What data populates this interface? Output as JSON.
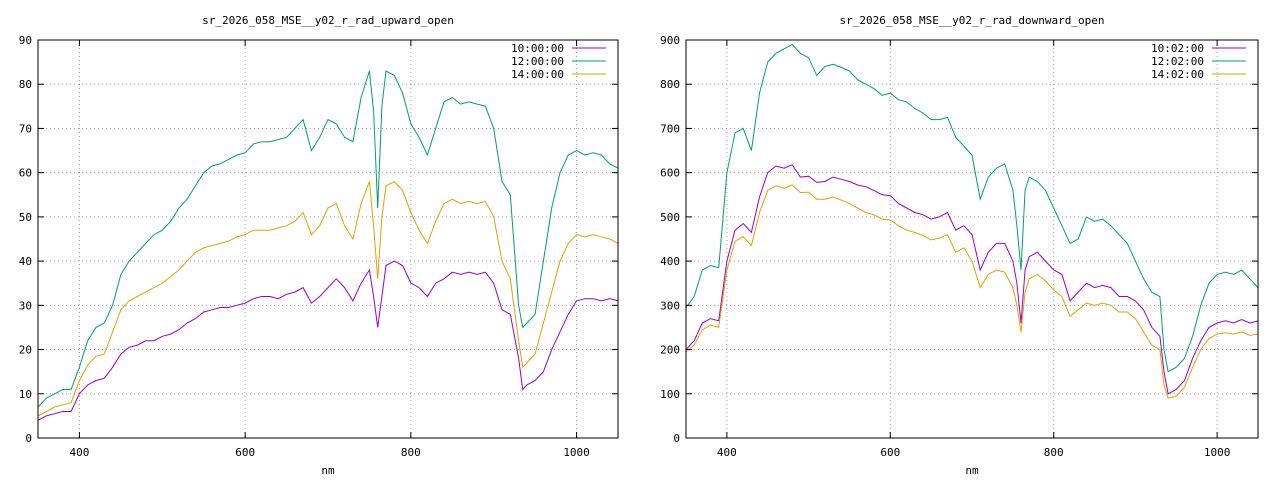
{
  "chart_data": [
    {
      "type": "line",
      "title": "sr_2026_058_MSE__y02_r_rad_upward_open",
      "xlabel": "nm",
      "ylabel": "",
      "xlim": [
        350,
        1050
      ],
      "ylim": [
        0,
        90
      ],
      "xticks": [
        400,
        600,
        800,
        1000
      ],
      "yticks": [
        0,
        10,
        20,
        30,
        40,
        50,
        60,
        70,
        80,
        90
      ],
      "grid": true,
      "legend_position": "top-right",
      "x": [
        350,
        360,
        370,
        380,
        390,
        400,
        410,
        420,
        430,
        440,
        450,
        460,
        470,
        480,
        490,
        500,
        510,
        520,
        530,
        540,
        550,
        560,
        570,
        580,
        590,
        600,
        610,
        620,
        630,
        640,
        650,
        660,
        670,
        680,
        690,
        700,
        710,
        720,
        730,
        740,
        750,
        755,
        760,
        765,
        770,
        780,
        790,
        800,
        810,
        820,
        830,
        840,
        850,
        860,
        870,
        880,
        890,
        900,
        910,
        920,
        930,
        935,
        940,
        950,
        960,
        970,
        980,
        990,
        1000,
        1010,
        1020,
        1030,
        1040,
        1050
      ],
      "series": [
        {
          "name": "10:00:00",
          "color": "#9400d3",
          "values": [
            4,
            5,
            5.5,
            6,
            6,
            10,
            12,
            13,
            13.5,
            16,
            19,
            20.5,
            21,
            22,
            22,
            23,
            23.5,
            24.5,
            26,
            27,
            28.5,
            29,
            29.5,
            29.5,
            30,
            30.5,
            31.5,
            32,
            32,
            31.5,
            32.5,
            33,
            34,
            30.5,
            32,
            34,
            36,
            34,
            31,
            35,
            38,
            32,
            25,
            32,
            39,
            40,
            39,
            35,
            34,
            32,
            35,
            36,
            37.5,
            37,
            37.5,
            37,
            37.5,
            35,
            29,
            28,
            18,
            11,
            12,
            13,
            15,
            20,
            24,
            28,
            31,
            31.5,
            31.5,
            31,
            31.5,
            31
          ]
        },
        {
          "name": "12:00:00",
          "color": "#009e73",
          "values": [
            7,
            9,
            10,
            11,
            11,
            16,
            22,
            25,
            26,
            30,
            37,
            40,
            42,
            44,
            46,
            47,
            49,
            52,
            54,
            57,
            60,
            61.5,
            62,
            63,
            64,
            64.5,
            66.5,
            67,
            67,
            67.5,
            68,
            70,
            72,
            65,
            68,
            72,
            71,
            68,
            67,
            77,
            83,
            74,
            52,
            75,
            83,
            82,
            78,
            71,
            68,
            64,
            70,
            76,
            77,
            75.5,
            76,
            75.5,
            75,
            70,
            58,
            55,
            30,
            25,
            26,
            28,
            40,
            52,
            60,
            64,
            65,
            64,
            64.5,
            64,
            62,
            61
          ]
        },
        {
          "name": "14:00:00",
          "color": "#e69f00",
          "values": [
            5,
            6,
            7,
            7.5,
            8,
            13,
            16.5,
            18.5,
            19,
            24,
            29,
            31,
            32,
            33,
            34,
            35,
            36.5,
            38,
            40,
            42,
            43,
            43.5,
            44,
            44.5,
            45.5,
            46,
            47,
            47,
            47,
            47.5,
            48,
            49,
            51,
            46,
            48,
            52,
            53,
            48,
            45,
            53,
            58,
            48,
            36,
            50,
            57,
            58,
            56,
            51,
            47,
            44,
            49,
            53,
            54,
            53,
            53.5,
            53,
            53.5,
            50,
            40,
            36,
            22,
            16,
            17,
            19,
            26,
            33,
            40,
            44,
            46,
            45.5,
            46,
            45.5,
            45,
            44
          ]
        }
      ]
    },
    {
      "type": "line",
      "title": "sr_2026_058_MSE__y02_r_rad_downward_open",
      "xlabel": "nm",
      "ylabel": "",
      "xlim": [
        350,
        1050
      ],
      "ylim": [
        0,
        900
      ],
      "xticks": [
        400,
        600,
        800,
        1000
      ],
      "yticks": [
        0,
        100,
        200,
        300,
        400,
        500,
        600,
        700,
        800,
        900
      ],
      "grid": true,
      "legend_position": "top-right",
      "x": [
        350,
        360,
        370,
        380,
        390,
        400,
        410,
        420,
        430,
        440,
        450,
        460,
        470,
        480,
        490,
        500,
        510,
        520,
        530,
        540,
        550,
        560,
        570,
        580,
        590,
        600,
        610,
        620,
        630,
        640,
        650,
        660,
        670,
        680,
        690,
        700,
        710,
        720,
        730,
        740,
        750,
        755,
        760,
        765,
        770,
        780,
        790,
        800,
        810,
        820,
        830,
        840,
        850,
        860,
        870,
        880,
        890,
        900,
        910,
        920,
        930,
        935,
        940,
        950,
        960,
        970,
        980,
        990,
        1000,
        1010,
        1020,
        1030,
        1040,
        1050
      ],
      "series": [
        {
          "name": "10:02:00",
          "color": "#9400d3",
          "values": [
            200,
            220,
            260,
            270,
            265,
            400,
            470,
            485,
            465,
            545,
            600,
            615,
            610,
            618,
            590,
            592,
            578,
            580,
            590,
            585,
            580,
            572,
            568,
            560,
            550,
            548,
            530,
            520,
            510,
            505,
            495,
            500,
            510,
            470,
            480,
            460,
            380,
            420,
            440,
            440,
            400,
            350,
            260,
            380,
            410,
            420,
            400,
            380,
            370,
            310,
            330,
            350,
            340,
            345,
            340,
            320,
            320,
            310,
            290,
            250,
            230,
            150,
            100,
            110,
            130,
            180,
            220,
            250,
            260,
            265,
            260,
            268,
            260,
            265
          ]
        },
        {
          "name": "12:02:00",
          "color": "#009e73",
          "values": [
            295,
            320,
            380,
            390,
            385,
            600,
            690,
            700,
            650,
            780,
            850,
            870,
            880,
            890,
            870,
            860,
            820,
            840,
            845,
            838,
            830,
            810,
            800,
            790,
            775,
            780,
            765,
            760,
            745,
            735,
            720,
            720,
            725,
            680,
            660,
            640,
            540,
            590,
            610,
            620,
            560,
            480,
            380,
            560,
            590,
            580,
            560,
            520,
            480,
            440,
            450,
            500,
            490,
            495,
            480,
            460,
            440,
            400,
            360,
            330,
            320,
            200,
            150,
            160,
            180,
            230,
            300,
            350,
            370,
            375,
            370,
            380,
            360,
            340
          ]
        },
        {
          "name": "14:02:00",
          "color": "#e69f00",
          "values": [
            195,
            210,
            245,
            255,
            250,
            380,
            445,
            455,
            435,
            510,
            560,
            570,
            565,
            572,
            555,
            556,
            540,
            540,
            545,
            538,
            530,
            520,
            510,
            505,
            495,
            493,
            480,
            470,
            465,
            458,
            448,
            452,
            460,
            420,
            430,
            400,
            340,
            370,
            380,
            375,
            340,
            300,
            240,
            330,
            360,
            370,
            355,
            335,
            320,
            275,
            290,
            305,
            300,
            305,
            300,
            285,
            285,
            270,
            240,
            210,
            200,
            120,
            90,
            95,
            115,
            160,
            200,
            225,
            235,
            238,
            235,
            240,
            232,
            235
          ]
        }
      ]
    }
  ]
}
